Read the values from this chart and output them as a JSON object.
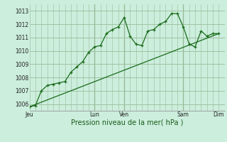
{
  "xlabel": "Pression niveau de la mer( hPa )",
  "background_color": "#cceedd",
  "grid_color": "#99bb99",
  "line_color": "#1a6b1a",
  "ylim": [
    1005.5,
    1013.5
  ],
  "xlim": [
    0,
    33
  ],
  "main_x": [
    0,
    1,
    2,
    3,
    4,
    5,
    6,
    7,
    8,
    9,
    10,
    11,
    12,
    13,
    14,
    15,
    16,
    17,
    18,
    19,
    20,
    21,
    22,
    23,
    24,
    25,
    26,
    27,
    28,
    29,
    30,
    31,
    32
  ],
  "main_y": [
    1005.8,
    1005.9,
    1007.0,
    1007.4,
    1007.5,
    1007.6,
    1007.7,
    1008.4,
    1008.8,
    1009.2,
    1009.9,
    1010.3,
    1010.4,
    1011.3,
    1011.6,
    1011.8,
    1012.5,
    1011.1,
    1010.5,
    1010.4,
    1011.5,
    1011.6,
    1012.0,
    1012.2,
    1012.8,
    1012.8,
    1011.8,
    1010.5,
    1010.3,
    1011.5,
    1011.1,
    1011.3,
    1011.3
  ],
  "trend_x": [
    0,
    32
  ],
  "trend_y": [
    1005.8,
    1011.3
  ],
  "yticks": [
    1006,
    1007,
    1008,
    1009,
    1010,
    1011,
    1012,
    1013
  ],
  "xtick_positions": [
    0,
    11,
    16,
    26,
    32
  ],
  "xtick_labels": [
    "Jeu",
    "Lun",
    "Ven",
    "Sam",
    "Dim"
  ],
  "vline_positions": [
    11,
    16,
    26
  ],
  "ylabel_fontsize": 5.5,
  "xlabel_fontsize": 7,
  "xtick_fontsize": 5.5
}
